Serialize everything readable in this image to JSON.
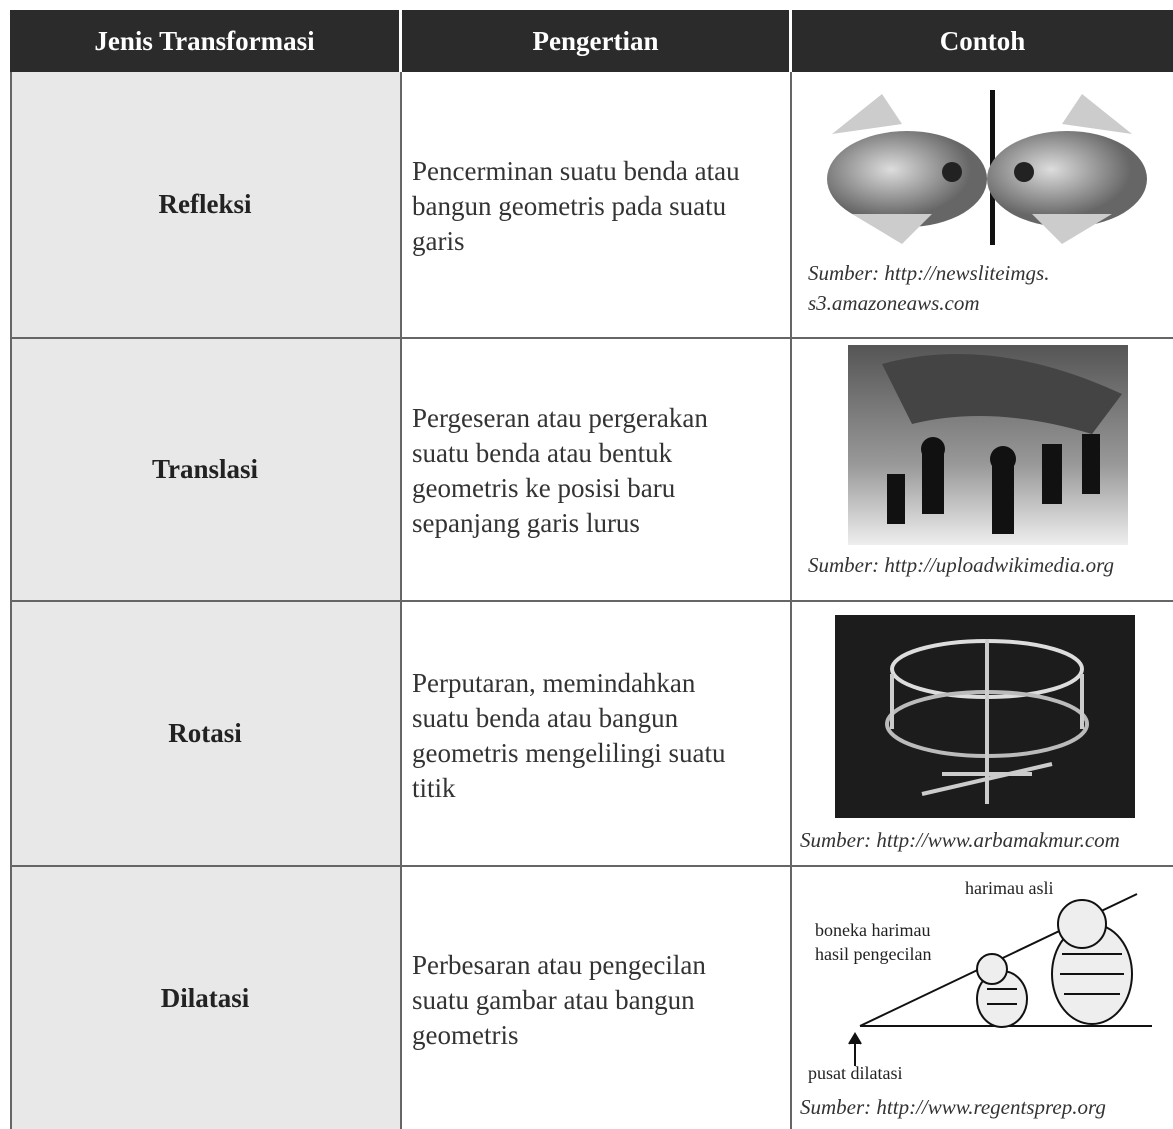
{
  "table": {
    "header": [
      "Jenis Transformasi",
      "Pengertian",
      "Contoh"
    ],
    "rows": [
      {
        "type": "Refleksi",
        "definition": [
          "Pencerminan suatu benda atau",
          "bangun geometris pada suatu",
          "garis"
        ],
        "source": [
          "Sumber: http://newsliteimgs.",
          "s3.amazoneaws.com"
        ]
      },
      {
        "type": "Translasi",
        "definition": [
          "Pergeseran atau pergerakan",
          "suatu benda atau bentuk",
          "geometris ke posisi baru",
          "sepanjang garis lurus"
        ],
        "source": [
          "Sumber: http://uploadwikimedia.org"
        ]
      },
      {
        "type": "Rotasi",
        "definition": [
          "Perputaran, memindahkan",
          "suatu benda atau bangun",
          "geometris mengelilingi suatu",
          "titik"
        ],
        "source": [
          "Sumber: http://www.arbamakmur.com"
        ]
      },
      {
        "type": "Dilatasi",
        "definition": [
          "Perbesaran atau pengecilan",
          "suatu gambar atau bangun",
          "geometris"
        ],
        "source": [
          "Sumber: http://www.regentsprep.org"
        ],
        "diagram": {
          "original": "harimau asli",
          "small": [
            "boneka harimau",
            "hasil pengecilan"
          ],
          "center": "pusat dilatasi"
        }
      }
    ]
  }
}
